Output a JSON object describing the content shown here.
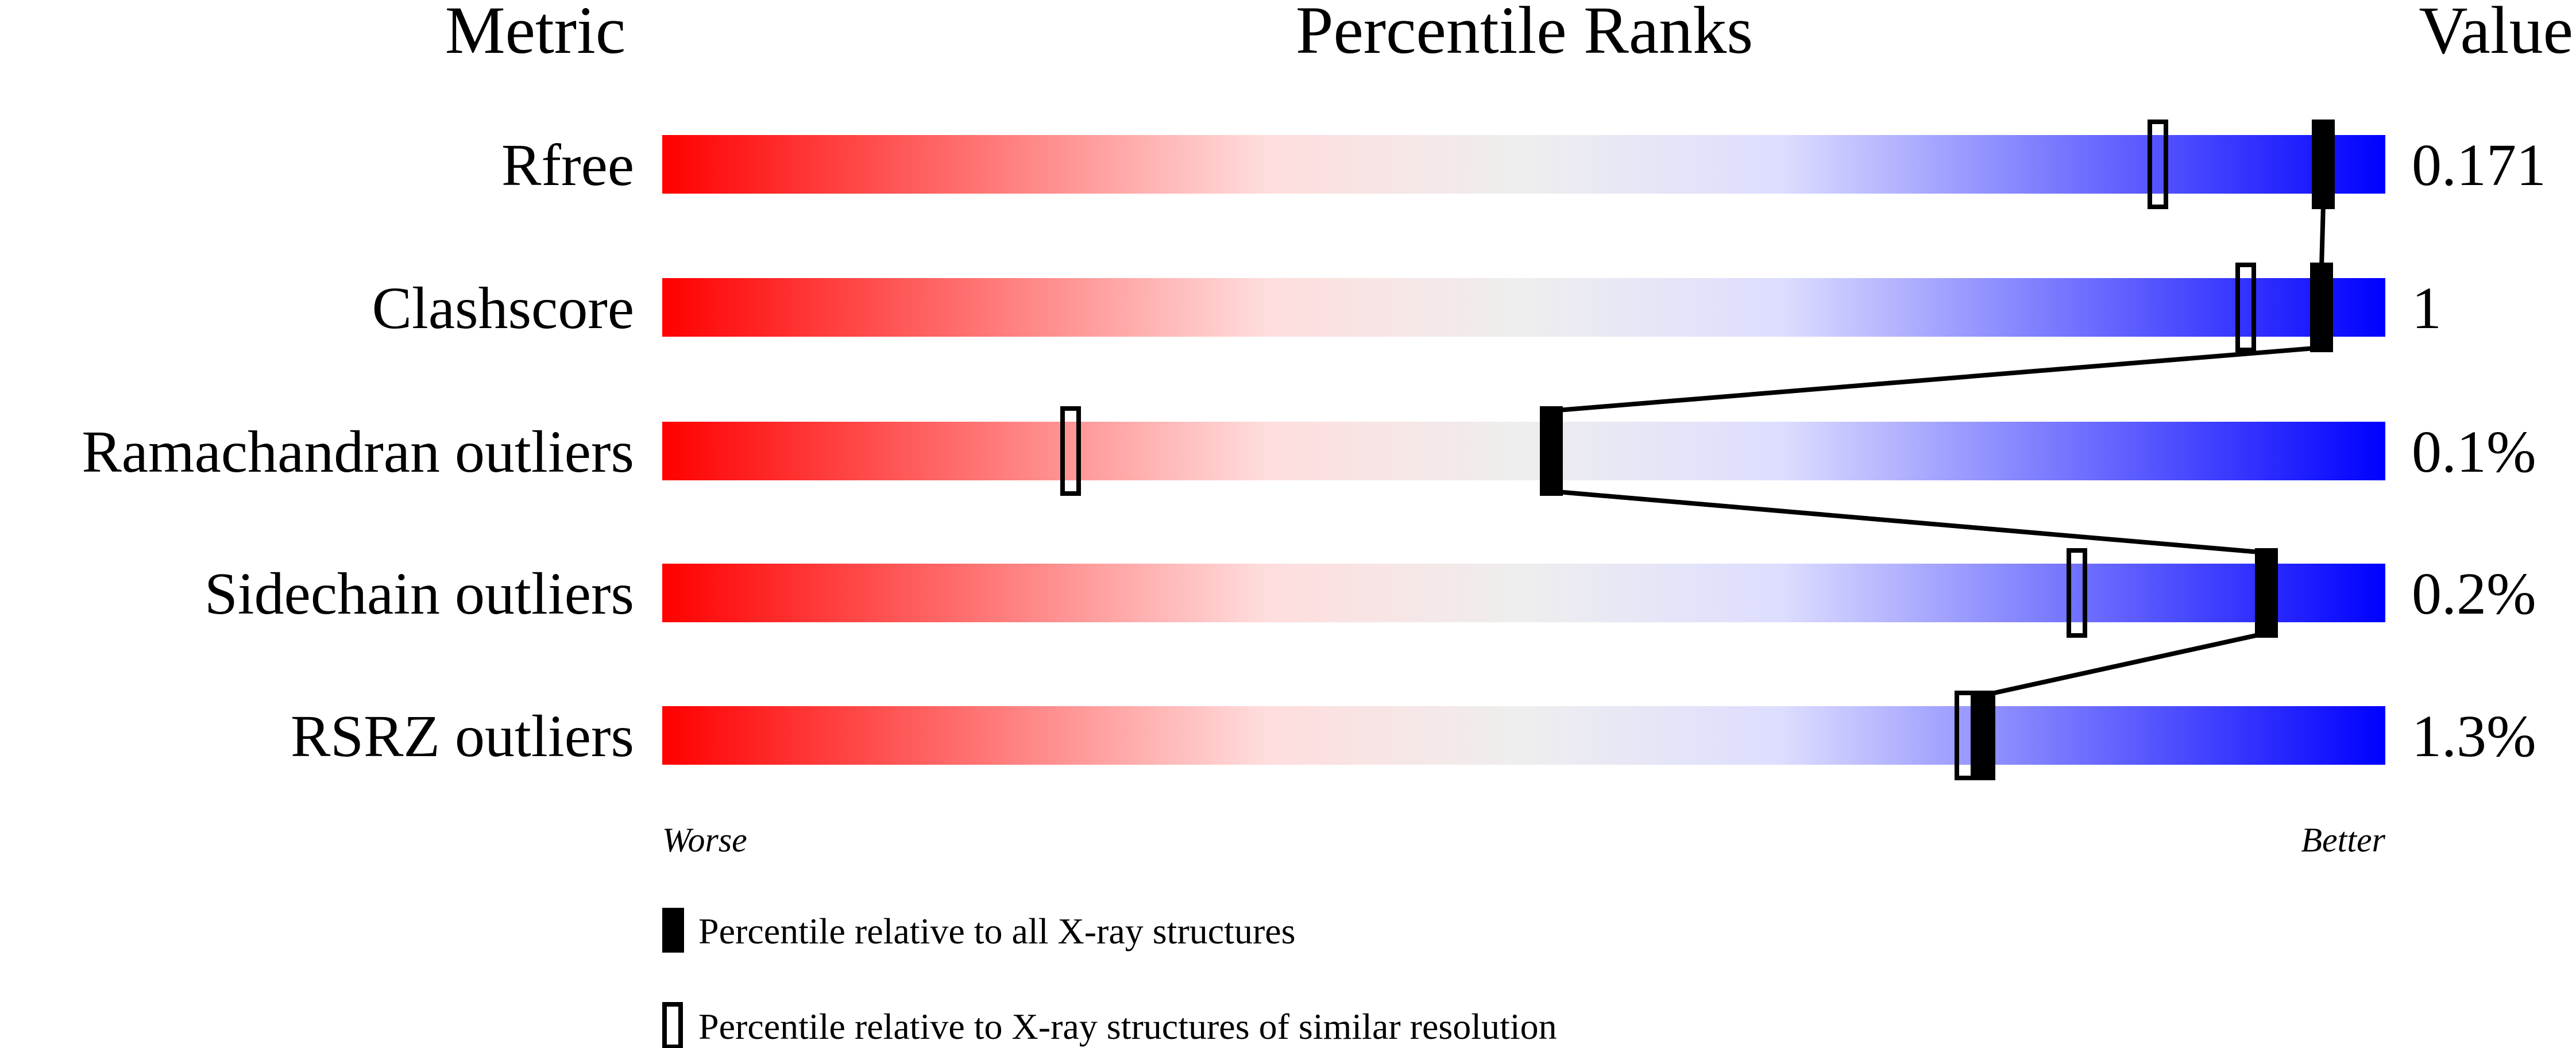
{
  "chart_data": {
    "type": "percentile-slider",
    "headers": {
      "metric": "Metric",
      "ranks": "Percentile Ranks",
      "value": "Value"
    },
    "xlim": [
      0,
      100
    ],
    "axis_labels": {
      "left": "Worse",
      "right": "Better"
    },
    "gradient_colors": [
      "#ff0000",
      "#ffdddd",
      "#eeeeee",
      "#ddddff",
      "#0000ff"
    ],
    "rows": [
      {
        "metric": "Rfree",
        "value": "0.171",
        "percentile_all": 96.4,
        "percentile_similar": 86.8
      },
      {
        "metric": "Clashscore",
        "value": "1",
        "percentile_all": 96.3,
        "percentile_similar": 91.9
      },
      {
        "metric": "Ramachandran outliers",
        "value": "0.1%",
        "percentile_all": 51.6,
        "percentile_similar": 23.7
      },
      {
        "metric": "Sidechain outliers",
        "value": "0.2%",
        "percentile_all": 93.1,
        "percentile_similar": 82.1
      },
      {
        "metric": "RSRZ outliers",
        "value": "1.3%",
        "percentile_all": 76.7,
        "percentile_similar": 75.6
      }
    ],
    "legend": [
      {
        "marker": "filled",
        "label": "Percentile relative to all X-ray structures"
      },
      {
        "marker": "open",
        "label": "Percentile relative to X-ray structures of similar resolution"
      }
    ]
  }
}
